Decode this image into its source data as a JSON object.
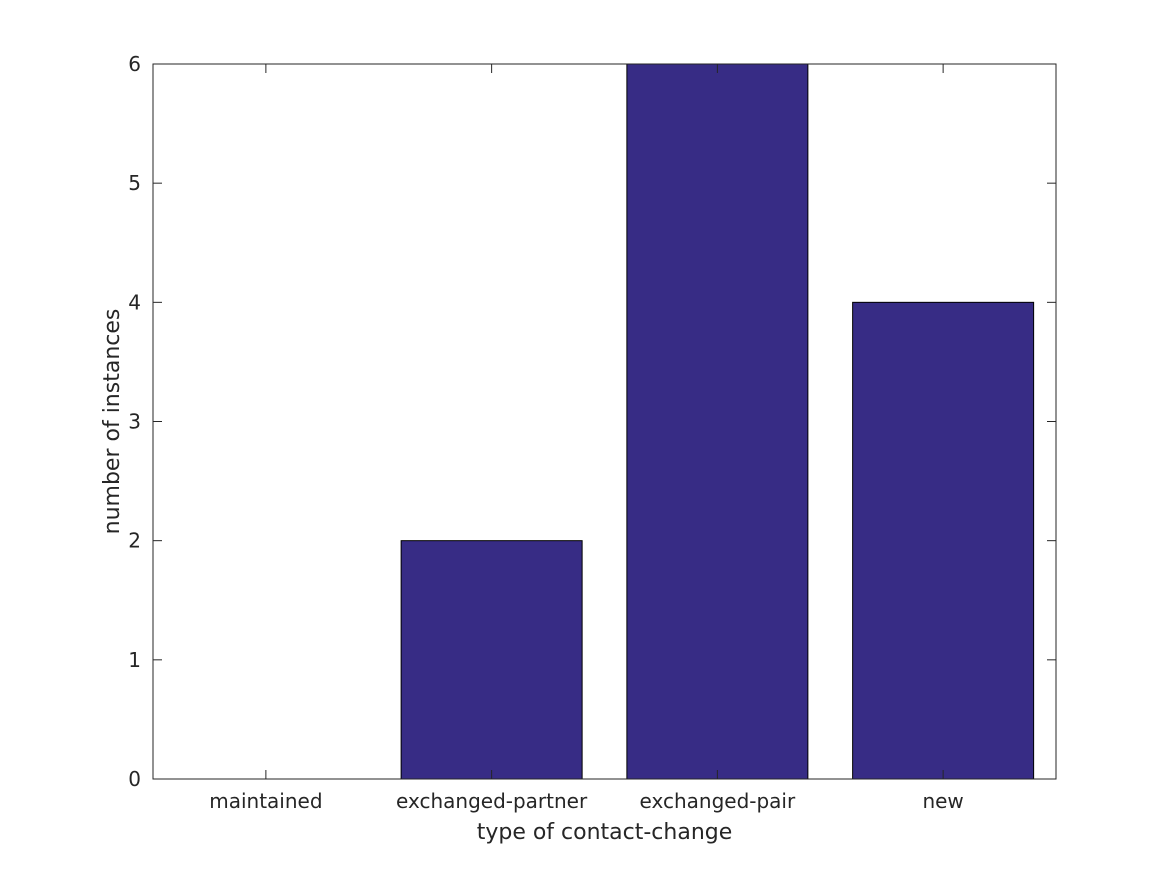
{
  "chart_data": {
    "type": "bar",
    "categories": [
      "maintained",
      "exchanged-partner",
      "exchanged-pair",
      "new"
    ],
    "values": [
      0,
      2,
      6,
      4
    ],
    "title": "",
    "xlabel": "type of contact-change",
    "ylabel": "number of instances",
    "ylim": [
      0,
      6
    ],
    "yticks": [
      0,
      1,
      2,
      3,
      4,
      5,
      6
    ],
    "ytick_labels": [
      "0",
      "1",
      "2",
      "3",
      "4",
      "5",
      "6"
    ],
    "grid": false,
    "legend": "none",
    "bar_color": "#372c85",
    "axis_color": "#262626"
  }
}
